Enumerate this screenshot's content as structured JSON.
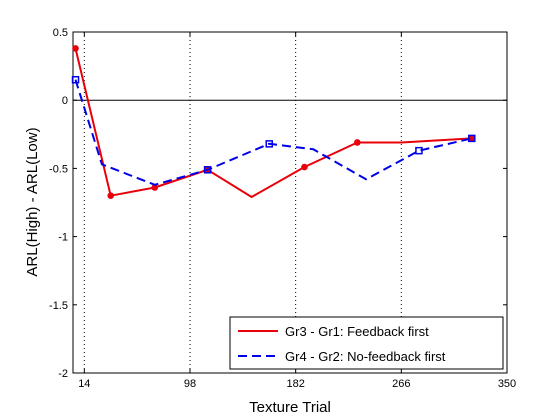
{
  "chart_data": {
    "type": "line",
    "title": "",
    "xlabel": "Texture Trial",
    "ylabel": "ARL(High) - ARL(Low)",
    "xlim": [
      5,
      350
    ],
    "ylim": [
      -2,
      0.5
    ],
    "xticks": [
      14,
      98,
      182,
      266,
      350
    ],
    "xtick_labels": [
      "14",
      "98",
      "182",
      "266",
      "350"
    ],
    "yticks": [
      0.5,
      0,
      -0.5,
      -1,
      -1.5,
      -2
    ],
    "ytick_labels": [
      "0.5",
      "0",
      "-0.5",
      "-1",
      "-1.5",
      "-2"
    ],
    "vertical_dotted_lines_x": [
      14,
      98,
      182,
      266
    ],
    "horizontal_reference_line_y": 0,
    "grid": false,
    "legend_placement": "bottom-right",
    "series": [
      {
        "name": "Gr3 - Gr1: Feedback first",
        "color": "#e8000b",
        "line_style": "solid",
        "marker": "circle",
        "x": [
          7,
          35,
          70,
          112,
          147,
          189,
          231,
          266,
          322
        ],
        "y": [
          0.38,
          -0.7,
          -0.64,
          -0.51,
          -0.71,
          -0.49,
          -0.31,
          -0.31,
          -0.28
        ],
        "marker_x": [
          7,
          35,
          70,
          112,
          189,
          231,
          322
        ],
        "marker_y": [
          0.38,
          -0.7,
          -0.64,
          -0.51,
          -0.49,
          -0.31,
          -0.28
        ]
      },
      {
        "name": "Gr4 - Gr2: No-feedback first",
        "color": "#0000e8",
        "line_style": "dashed",
        "marker": "square",
        "x": [
          7,
          28,
          70,
          112,
          161,
          196,
          238,
          280,
          322
        ],
        "y": [
          0.15,
          -0.47,
          -0.62,
          -0.51,
          -0.32,
          -0.36,
          -0.58,
          -0.37,
          -0.28
        ],
        "marker_x": [
          7,
          112,
          161,
          280,
          322
        ],
        "marker_y": [
          0.15,
          -0.51,
          -0.32,
          -0.37,
          -0.28
        ]
      }
    ]
  }
}
